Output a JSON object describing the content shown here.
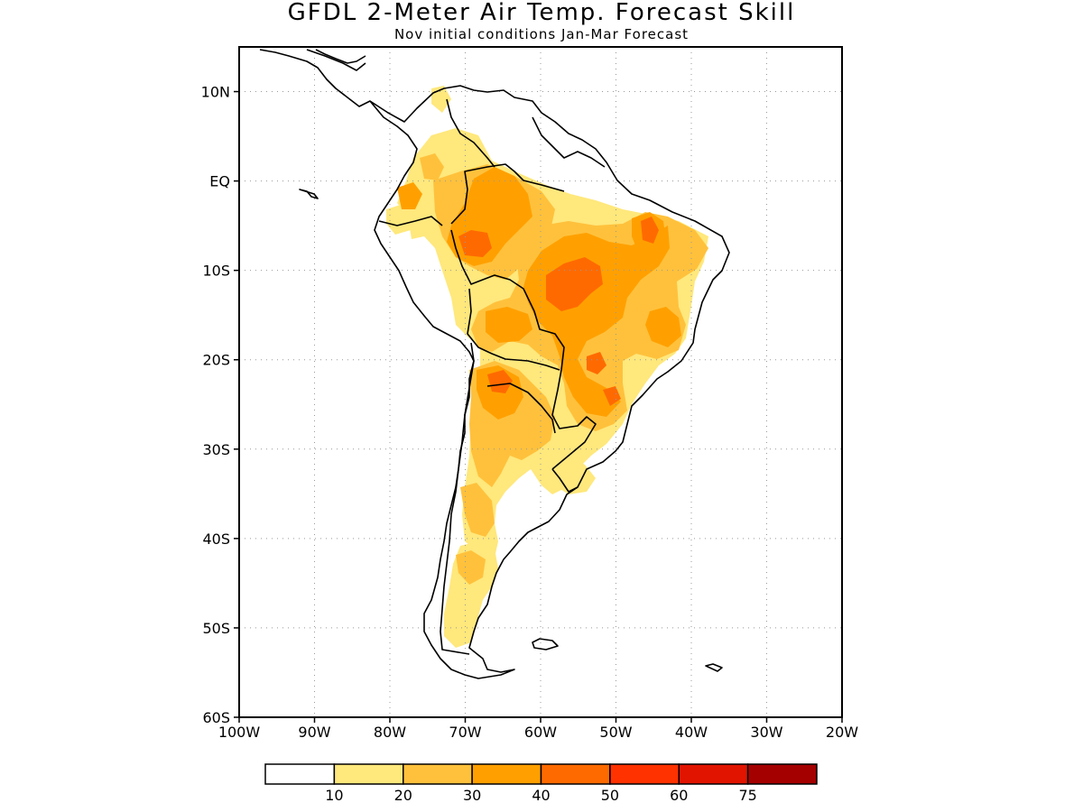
{
  "title": "GFDL 2-Meter Air Temp. Forecast Skill",
  "subtitle": "Nov initial conditions  Jan-Mar Forecast",
  "map": {
    "region": "South America",
    "lon_range": [
      -100,
      -20
    ],
    "lat_range": [
      -60,
      15
    ],
    "grid": "dotted",
    "lat_ticks": [
      {
        "value": 10,
        "label": "10N"
      },
      {
        "value": 0,
        "label": "EQ"
      },
      {
        "value": -10,
        "label": "10S"
      },
      {
        "value": -20,
        "label": "20S"
      },
      {
        "value": -30,
        "label": "30S"
      },
      {
        "value": -40,
        "label": "40S"
      },
      {
        "value": -50,
        "label": "50S"
      },
      {
        "value": -60,
        "label": "60S"
      }
    ],
    "lon_ticks": [
      {
        "value": -100,
        "label": "100W"
      },
      {
        "value": -90,
        "label": "90W"
      },
      {
        "value": -80,
        "label": "80W"
      },
      {
        "value": -70,
        "label": "70W"
      },
      {
        "value": -60,
        "label": "60W"
      },
      {
        "value": -50,
        "label": "50W"
      },
      {
        "value": -40,
        "label": "40W"
      },
      {
        "value": -30,
        "label": "30W"
      },
      {
        "value": -20,
        "label": "20W"
      }
    ]
  },
  "colorbar": {
    "colors": [
      "#ffffff",
      "#ffe87c",
      "#ffc13c",
      "#ffa000",
      "#ff6a00",
      "#ff3200",
      "#e11400",
      "#a50000"
    ],
    "labels": [
      "10",
      "20",
      "30",
      "40",
      "50",
      "60",
      "75"
    ]
  }
}
